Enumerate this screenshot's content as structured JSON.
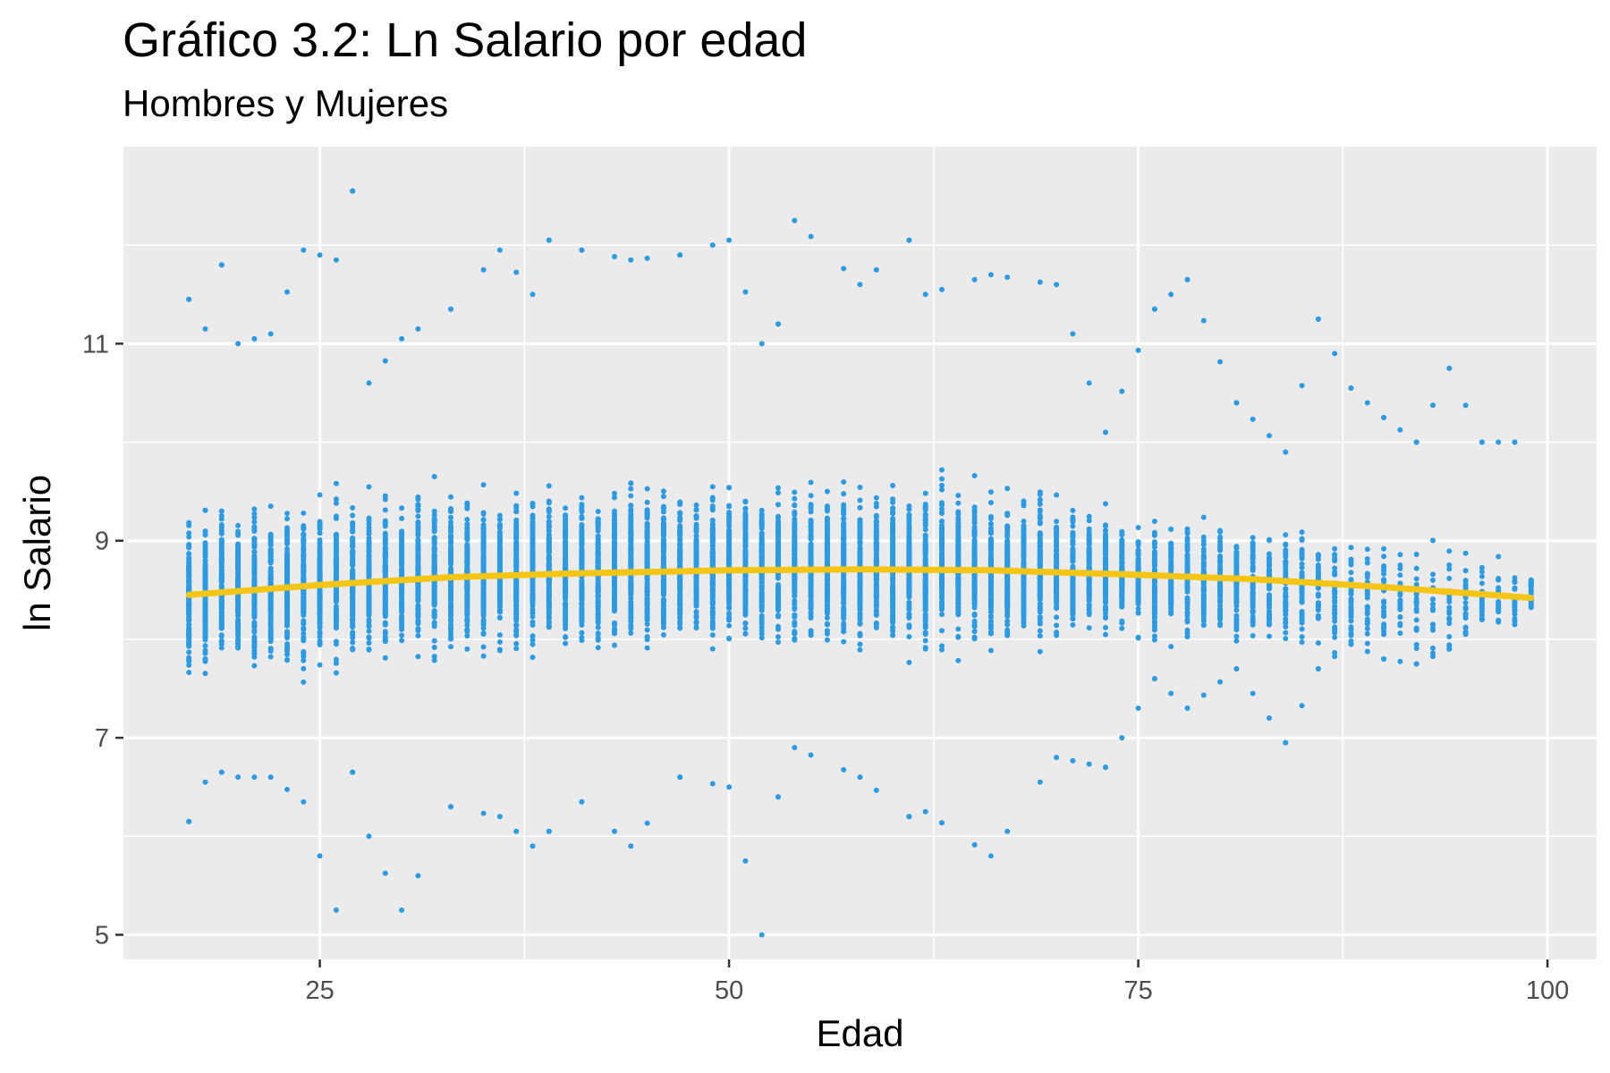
{
  "chart_data": {
    "type": "scatter",
    "title": "Gráfico 3.2: Ln Salario por edad",
    "subtitle": "Hombres y Mujeres",
    "xlabel": "Edad",
    "ylabel": "ln Salario",
    "xlim": [
      13,
      103
    ],
    "ylim": [
      4.75,
      13.0
    ],
    "x_ticks": [
      25,
      50,
      75,
      100
    ],
    "y_ticks": [
      5,
      7,
      9,
      11
    ],
    "grid": true,
    "legend": "none",
    "colors": {
      "points": "#2b9be3",
      "trend": "#f5c516",
      "panel": "#ebebeb",
      "grid": "#ffffff"
    },
    "series": [
      {
        "type": "scatter",
        "summary_by_age": [
          {
            "x": 17,
            "y_min": 6.15,
            "y_max": 11.45,
            "center": 8.4
          },
          {
            "x": 18,
            "y_min": 6.55,
            "y_max": 11.15,
            "center": 8.45
          },
          {
            "x": 19,
            "y_min": 6.65,
            "y_max": 11.8,
            "center": 8.5
          },
          {
            "x": 20,
            "y_min": 6.6,
            "y_max": 11.0,
            "center": 8.5
          },
          {
            "x": 22,
            "y_min": 6.6,
            "y_max": 11.1,
            "center": 8.55
          },
          {
            "x": 24,
            "y_min": 6.35,
            "y_max": 11.95,
            "center": 8.55
          },
          {
            "x": 26,
            "y_min": 5.25,
            "y_max": 11.85,
            "center": 8.6
          },
          {
            "x": 27,
            "y_min": 6.65,
            "y_max": 12.55,
            "center": 8.6
          },
          {
            "x": 28,
            "y_min": 6.0,
            "y_max": 10.6,
            "center": 8.6
          },
          {
            "x": 30,
            "y_min": 5.25,
            "y_max": 11.05,
            "center": 8.65
          },
          {
            "x": 33,
            "y_min": 6.3,
            "y_max": 11.35,
            "center": 8.65
          },
          {
            "x": 36,
            "y_min": 6.2,
            "y_max": 11.95,
            "center": 8.7
          },
          {
            "x": 38,
            "y_min": 5.9,
            "y_max": 11.5,
            "center": 8.7
          },
          {
            "x": 39,
            "y_min": 6.05,
            "y_max": 12.05,
            "center": 8.7
          },
          {
            "x": 41,
            "y_min": 6.35,
            "y_max": 11.95,
            "center": 8.7
          },
          {
            "x": 44,
            "y_min": 5.9,
            "y_max": 11.85,
            "center": 8.75
          },
          {
            "x": 47,
            "y_min": 6.6,
            "y_max": 11.9,
            "center": 8.75
          },
          {
            "x": 50,
            "y_min": 6.5,
            "y_max": 12.05,
            "center": 8.75
          },
          {
            "x": 52,
            "y_min": 5.0,
            "y_max": 11.0,
            "center": 8.75
          },
          {
            "x": 53,
            "y_min": 6.4,
            "y_max": 11.2,
            "center": 8.75
          },
          {
            "x": 54,
            "y_min": 6.9,
            "y_max": 12.25,
            "center": 8.75
          },
          {
            "x": 58,
            "y_min": 6.6,
            "y_max": 11.6,
            "center": 8.75
          },
          {
            "x": 61,
            "y_min": 6.2,
            "y_max": 12.05,
            "center": 8.75
          },
          {
            "x": 62,
            "y_min": 6.25,
            "y_max": 11.5,
            "center": 8.75
          },
          {
            "x": 66,
            "y_min": 5.8,
            "y_max": 11.7,
            "center": 8.7
          },
          {
            "x": 70,
            "y_min": 6.8,
            "y_max": 11.6,
            "center": 8.7
          },
          {
            "x": 73,
            "y_min": 6.7,
            "y_max": 10.1,
            "center": 8.7
          },
          {
            "x": 76,
            "y_min": 7.6,
            "y_max": 11.35,
            "center": 8.6
          },
          {
            "x": 78,
            "y_min": 7.3,
            "y_max": 11.65,
            "center": 8.6
          },
          {
            "x": 81,
            "y_min": 7.7,
            "y_max": 10.4,
            "center": 8.55
          },
          {
            "x": 84,
            "y_min": 6.95,
            "y_max": 9.9,
            "center": 8.55
          },
          {
            "x": 86,
            "y_min": 7.7,
            "y_max": 11.25,
            "center": 8.5
          },
          {
            "x": 88,
            "y_min": 7.95,
            "y_max": 10.55,
            "center": 8.45
          },
          {
            "x": 90,
            "y_min": 7.8,
            "y_max": 10.25,
            "center": 8.4
          },
          {
            "x": 92,
            "y_min": 7.75,
            "y_max": 10.0,
            "center": 8.4
          },
          {
            "x": 94,
            "y_min": 7.9,
            "y_max": 10.75,
            "center": 8.35
          },
          {
            "x": 96,
            "y_min": 8.2,
            "y_max": 10.0,
            "center": 8.3
          },
          {
            "x": 98,
            "y_min": 8.15,
            "y_max": 10.0,
            "center": 8.3
          },
          {
            "x": 99,
            "y_min": 8.55,
            "y_max": 8.6,
            "center": 8.55
          }
        ]
      },
      {
        "type": "line",
        "x": [
          17,
          25,
          33,
          41,
          50,
          58,
          66,
          74,
          82,
          90,
          99
        ],
        "y": [
          8.45,
          8.55,
          8.63,
          8.67,
          8.7,
          8.71,
          8.7,
          8.66,
          8.61,
          8.53,
          8.42
        ]
      }
    ]
  }
}
